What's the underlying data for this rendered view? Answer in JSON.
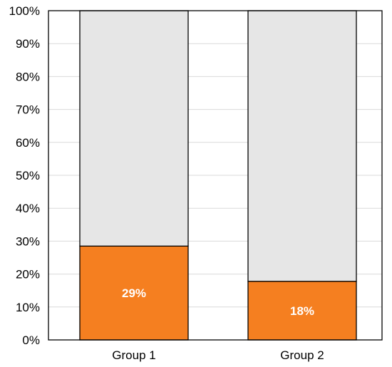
{
  "chart_data": {
    "type": "bar",
    "stacked": true,
    "categories": [
      "Group 1",
      "Group 2"
    ],
    "series": [
      {
        "values": [
          28.5,
          17.8
        ],
        "color": "#f57f20",
        "data_labels": [
          "29%",
          "18%"
        ]
      },
      {
        "values": [
          71.5,
          82.2
        ],
        "color": "#e6e6e6"
      }
    ],
    "y_ticks": [
      "0%",
      "10%",
      "20%",
      "30%",
      "40%",
      "50%",
      "60%",
      "70%",
      "80%",
      "90%",
      "100%"
    ],
    "ylim": [
      0,
      100
    ],
    "grid": true,
    "legend": "none",
    "colors": {
      "grid": "#d9d9d9",
      "axis": "#000000",
      "bar_border": "#000000"
    }
  }
}
